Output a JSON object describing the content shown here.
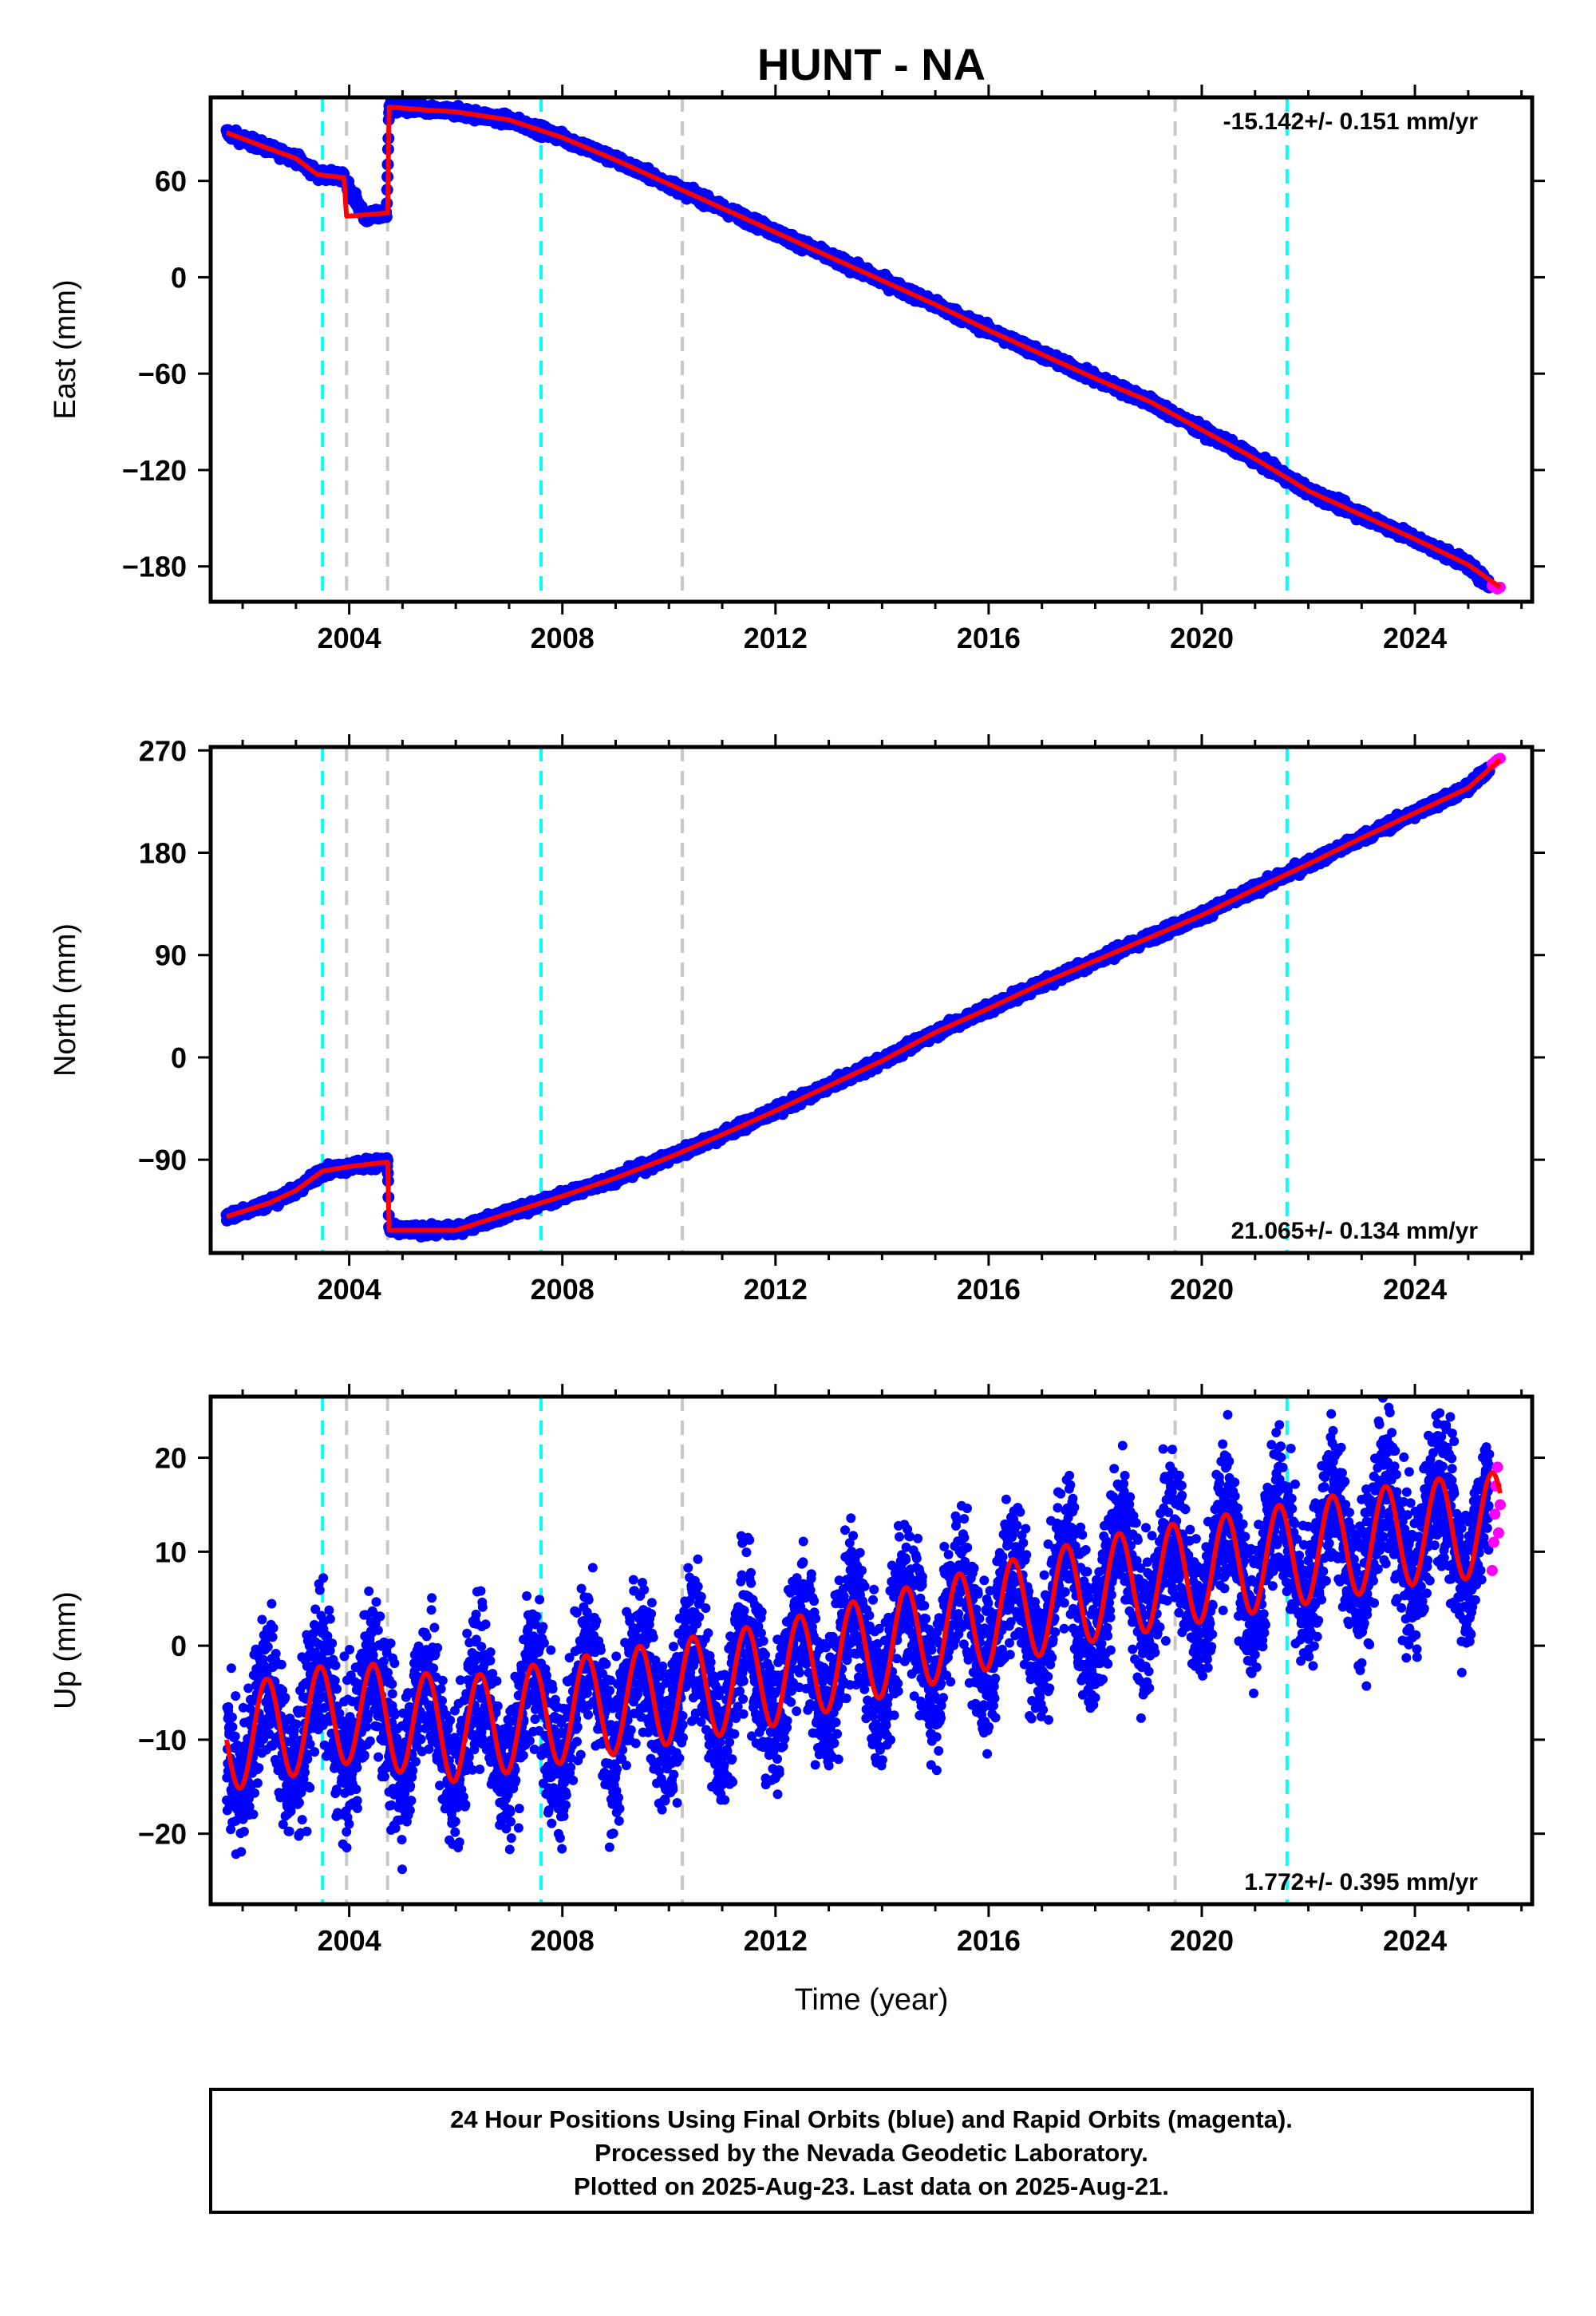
{
  "title": "HUNT - NA",
  "xlabel": "Time (year)",
  "footer": {
    "line1": "24 Hour Positions Using Final Orbits (blue) and Rapid Orbits (magenta).",
    "line2": "Processed by the Nevada Geodetic Laboratory.",
    "line3": "Plotted on 2025-Aug-23. Last data on 2025-Aug-21."
  },
  "colors": {
    "final_orbits": "#0000ff",
    "rapid_orbits": "#ff00ff",
    "model": "#ff0000",
    "equipment_change": "#00ffff",
    "earthquake_event": "#c8c8c8"
  },
  "events": {
    "cyan": [
      2003.5,
      2007.6,
      2021.6
    ],
    "gray": [
      2003.95,
      2004.72,
      2010.25,
      2019.5
    ]
  },
  "chart_data": [
    {
      "type": "scatter",
      "panel": "east",
      "ylabel": "East (mm)",
      "rate_label": "-15.142+/- 0.151 mm/yr",
      "rate_position": "top-right",
      "xlim": [
        2001.4,
        2026.2
      ],
      "ylim": [
        -202,
        112
      ],
      "xticks": [
        2004,
        2008,
        2012,
        2016,
        2020,
        2024
      ],
      "yticks": [
        60,
        0,
        -60,
        -120,
        -180
      ],
      "ytick_labels": [
        "60",
        "0",
        "−60",
        "−120",
        "−180"
      ],
      "grid": false,
      "series": [
        {
          "name": "Final Orbits (blue)",
          "style": "points",
          "x": [
            2001.7,
            2002.5,
            2003.0,
            2003.4,
            2003.9,
            2004.3,
            2004.7,
            2004.75,
            2005.5,
            2006.0,
            2007.0,
            2008.0,
            2009.0,
            2010.0,
            2011.0,
            2012.0,
            2013.0,
            2014.0,
            2015.0,
            2016.0,
            2017.0,
            2018.0,
            2019.0,
            2020.0,
            2021.0,
            2022.0,
            2023.0,
            2024.0,
            2025.0,
            2025.4
          ],
          "y": [
            90,
            80,
            74,
            64,
            62,
            37,
            40,
            106,
            104,
            103,
            98,
            87,
            73,
            58,
            43,
            28,
            13,
            -2,
            -17,
            -33,
            -48,
            -63,
            -77,
            -95,
            -113,
            -133,
            -148,
            -163,
            -179,
            -192
          ]
        },
        {
          "name": "Rapid Orbits (magenta)",
          "style": "points",
          "x": [
            2025.45,
            2025.5,
            2025.55,
            2025.6
          ],
          "y": [
            -192,
            -193,
            -194,
            -193
          ]
        },
        {
          "name": "Model",
          "style": "line",
          "x": [
            2001.7,
            2002.5,
            2003.0,
            2003.4,
            2003.9,
            2003.95,
            2004.72,
            2004.75,
            2005.5,
            2006.0,
            2007.0,
            2008.0,
            2009.0,
            2010.0,
            2011.0,
            2012.0,
            2013.0,
            2014.0,
            2015.0,
            2016.0,
            2017.0,
            2018.0,
            2019.0,
            2020.0,
            2021.0,
            2022.0,
            2023.0,
            2024.0,
            2025.0,
            2025.6
          ],
          "y": [
            90,
            80,
            74,
            64,
            62,
            38,
            40,
            106,
            104,
            103,
            98,
            87,
            73,
            58,
            43,
            28,
            13,
            -2,
            -17,
            -33,
            -48,
            -63,
            -77,
            -95,
            -113,
            -133,
            -148,
            -163,
            -179,
            -193
          ]
        }
      ]
    },
    {
      "type": "scatter",
      "panel": "north",
      "ylabel": "North (mm)",
      "rate_label": "21.065+/- 0.134 mm/yr",
      "rate_position": "bottom-right",
      "xlim": [
        2001.4,
        2026.2
      ],
      "ylim": [
        -172,
        273
      ],
      "xticks": [
        2004,
        2008,
        2012,
        2016,
        2020,
        2024
      ],
      "yticks": [
        270,
        180,
        90,
        0,
        -90
      ],
      "ytick_labels": [
        "270",
        "180",
        "90",
        "0",
        "−90"
      ],
      "grid": false,
      "series": [
        {
          "name": "Final Orbits (blue)",
          "style": "points",
          "x": [
            2001.7,
            2002.5,
            2003.0,
            2003.5,
            2004.0,
            2004.72,
            2004.75,
            2005.5,
            2006.0,
            2007.0,
            2008.0,
            2009.0,
            2010.0,
            2011.0,
            2012.0,
            2013.0,
            2014.0,
            2015.0,
            2016.0,
            2017.0,
            2018.0,
            2019.0,
            2020.0,
            2021.0,
            2022.0,
            2023.0,
            2024.0,
            2025.0,
            2025.4
          ],
          "y": [
            -140,
            -128,
            -117,
            -100,
            -96,
            -92,
            -152,
            -152,
            -152,
            -137,
            -122,
            -106,
            -88,
            -68,
            -47,
            -25,
            -3,
            22,
            43,
            65,
            85,
            105,
            125,
            148,
            170,
            193,
            215,
            237,
            255
          ]
        },
        {
          "name": "Rapid Orbits (magenta)",
          "style": "points",
          "x": [
            2025.45,
            2025.5,
            2025.55,
            2025.6
          ],
          "y": [
            258,
            260,
            262,
            263
          ]
        },
        {
          "name": "Model",
          "style": "line",
          "x": [
            2001.7,
            2002.5,
            2003.0,
            2003.5,
            2004.0,
            2004.72,
            2004.75,
            2005.5,
            2006.0,
            2007.0,
            2008.0,
            2009.0,
            2010.0,
            2011.0,
            2012.0,
            2013.0,
            2014.0,
            2015.0,
            2016.0,
            2017.0,
            2018.0,
            2019.0,
            2020.0,
            2021.0,
            2022.0,
            2023.0,
            2024.0,
            2025.0,
            2025.6
          ],
          "y": [
            -140,
            -128,
            -117,
            -100,
            -96,
            -92,
            -152,
            -152,
            -152,
            -137,
            -122,
            -106,
            -88,
            -68,
            -47,
            -25,
            -3,
            22,
            43,
            65,
            85,
            105,
            125,
            148,
            170,
            193,
            215,
            237,
            262
          ]
        }
      ]
    },
    {
      "type": "scatter",
      "panel": "up",
      "ylabel": "Up (mm)",
      "rate_label": "1.772+/- 0.395 mm/yr",
      "rate_position": "bottom-right",
      "xlim": [
        2001.4,
        2026.2
      ],
      "ylim": [
        -27.5,
        26.5
      ],
      "xticks": [
        2004,
        2008,
        2012,
        2016,
        2020,
        2024
      ],
      "yticks": [
        20,
        10,
        0,
        -10,
        -20
      ],
      "ytick_labels": [
        "20",
        "10",
        "0",
        "−10",
        "−20"
      ],
      "grid": false,
      "series": [
        {
          "name": "Final Orbits (blue)",
          "style": "points",
          "seasonal_amplitude_mm": 5.5,
          "scatter_mm": 4,
          "x": [
            2001.7,
            2004.0,
            2006.0,
            2008.0,
            2010.0,
            2012.0,
            2014.0,
            2016.0,
            2018.0,
            2020.0,
            2022.0,
            2024.0,
            2025.4
          ],
          "y": [
            -10,
            -7,
            -9,
            -7,
            -5,
            -3,
            0,
            3,
            6,
            8,
            10,
            12,
            13
          ]
        },
        {
          "name": "Rapid Orbits (magenta)",
          "style": "points",
          "x": [
            2025.45,
            2025.48,
            2025.5,
            2025.52,
            2025.55,
            2025.57,
            2025.6
          ],
          "y": [
            8,
            11,
            14,
            17,
            19,
            12,
            15
          ]
        },
        {
          "name": "Model",
          "style": "line",
          "seasonal_amplitude_mm": 5.5,
          "x": [
            2001.7,
            2004.0,
            2006.0,
            2008.0,
            2010.0,
            2012.0,
            2014.0,
            2016.0,
            2018.0,
            2020.0,
            2022.0,
            2024.0,
            2025.6
          ],
          "y": [
            -10,
            -7,
            -9,
            -7,
            -5,
            -3,
            0,
            3,
            6,
            8,
            10,
            12,
            13
          ]
        }
      ]
    }
  ]
}
